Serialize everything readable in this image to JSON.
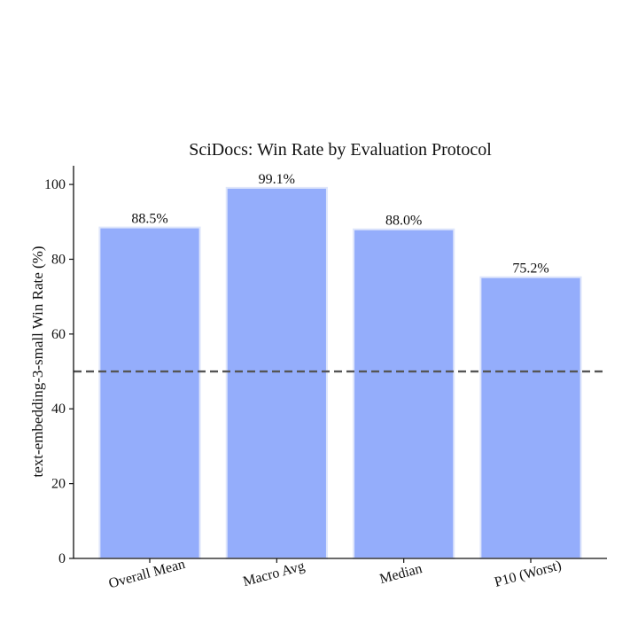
{
  "chart_data": {
    "type": "bar",
    "title": "SciDocs: Win Rate by Evaluation Protocol",
    "xlabel": "",
    "ylabel": "text-embedding-3-small Win Rate (%)",
    "categories": [
      "Overall Mean",
      "Macro Avg",
      "Median",
      "P10 (Worst)"
    ],
    "values": [
      88.5,
      99.1,
      88.0,
      75.2
    ],
    "value_labels": [
      "88.5%",
      "99.1%",
      "88.0%",
      "75.2%"
    ],
    "ylim": [
      0,
      105
    ],
    "yticks": [
      0,
      20,
      40,
      60,
      80,
      100
    ],
    "ytick_labels": [
      "0",
      "20",
      "40",
      "60",
      "80",
      "100"
    ],
    "reference_line": {
      "y": 50,
      "style": "dashed",
      "color": "#555555"
    },
    "bar_color": "#94adfb",
    "bar_edge_color": "#dfe6fb",
    "grid": false,
    "legend": "none"
  }
}
